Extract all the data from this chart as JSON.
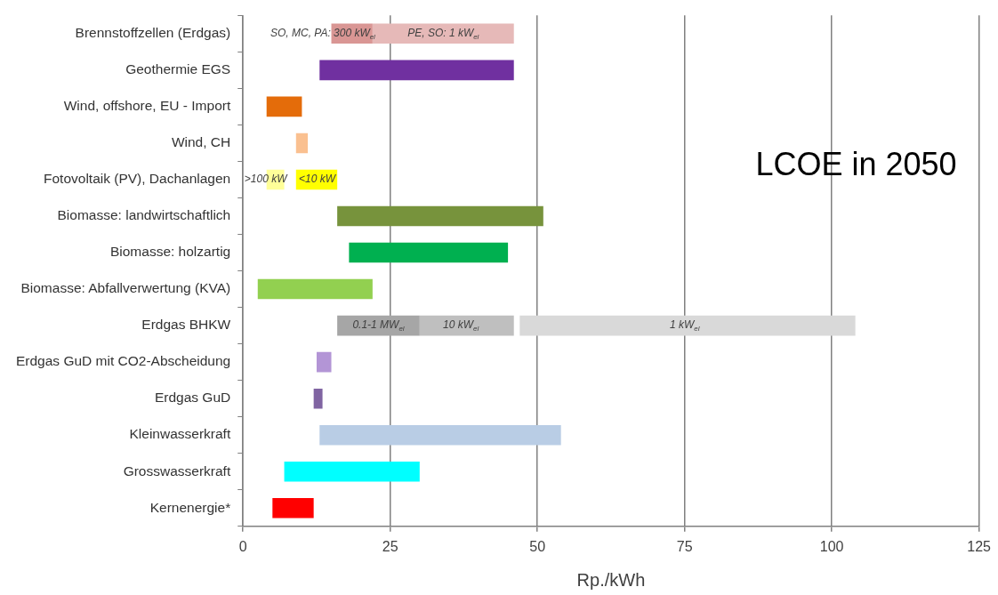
{
  "chart_data": {
    "type": "bar",
    "orientation": "horizontal",
    "title": "LCOE in 2050",
    "xlabel": "Rp./kWh",
    "categories": [
      "Brennstoffzellen (Erdgas)",
      "Geothermie EGS",
      "Wind, offshore, EU - Import",
      "Wind, CH",
      "Fotovoltaik (PV), Dachanlagen",
      "Biomasse: landwirtschaftlich",
      "Biomasse: holzartig",
      "Biomasse: Abfallverwertung (KVA)",
      "Erdgas BHKW",
      "Erdgas GuD mit CO2-Abscheidung",
      "Erdgas GuD",
      "Kleinwasserkraft",
      "Grosswasserkraft",
      "Kernenergie*"
    ],
    "series": [
      {
        "base": [
          15,
          13,
          4,
          9,
          4,
          16,
          18,
          2.5,
          16,
          12.5,
          12,
          13,
          7,
          5
        ],
        "values": [
          7,
          33,
          6,
          2,
          3,
          35,
          27,
          19.5,
          14,
          2.5,
          1.5,
          41,
          23,
          7
        ],
        "colors": [
          "#d99694",
          "#7030a0",
          "#e46c0a",
          "#fac090",
          "#ffff99",
          "#77933c",
          "#00b050",
          "#92d050",
          "#a6a6a6",
          "#b395d6",
          "#8064a2",
          "#b9cde5",
          "#00ffff",
          "#ff0000"
        ]
      },
      {
        "base": [
          22,
          null,
          null,
          null,
          9,
          null,
          null,
          null,
          30,
          null,
          null,
          null,
          null,
          null
        ],
        "values": [
          24,
          null,
          null,
          null,
          7,
          null,
          null,
          null,
          16,
          null,
          null,
          null,
          null,
          null
        ],
        "colors": [
          "#e6b9b8",
          null,
          null,
          null,
          "#ffff00",
          null,
          null,
          null,
          "#bfbfbf",
          null,
          null,
          null,
          null,
          null
        ]
      },
      {
        "base": [
          null,
          null,
          null,
          null,
          null,
          null,
          null,
          null,
          47,
          null,
          null,
          null,
          null,
          null
        ],
        "values": [
          null,
          null,
          null,
          null,
          null,
          null,
          null,
          null,
          57,
          null,
          null,
          null,
          null,
          null
        ],
        "colors": [
          null,
          null,
          null,
          null,
          null,
          null,
          null,
          null,
          "#d9d9d9",
          null,
          null,
          null,
          null,
          null
        ]
      }
    ],
    "annotations": [
      {
        "text": "SO, MC, PA: 300 kW$_{el}$",
        "x": 22,
        "y": "Brennstoffzellen (Erdgas)"
      },
      {
        "text": "PE, SO: 1 kW$_{el}$",
        "x": 34,
        "y": "Brennstoffzellen (Erdgas)"
      },
      {
        "text": ">100 kW",
        "x": 7,
        "y": "Fotovoltaik (PV), Dachanlagen"
      },
      {
        "text": "<10 kW",
        "x": 12.6,
        "y": "Fotovoltaik (PV), Dachanlagen"
      },
      {
        "text": "0.1-1 MW$_{el}$",
        "x": 23,
        "y": "Erdgas BHKW"
      },
      {
        "text": "10 kW$_{el}$",
        "x": 37,
        "y": "Erdgas BHKW"
      },
      {
        "text": "1 kW$_{el}$",
        "x": 75,
        "y": "Erdgas BHKW"
      }
    ],
    "xlim": [
      0,
      125
    ],
    "xticks": [
      0,
      25,
      50,
      75,
      100,
      125
    ],
    "grid": "x"
  }
}
